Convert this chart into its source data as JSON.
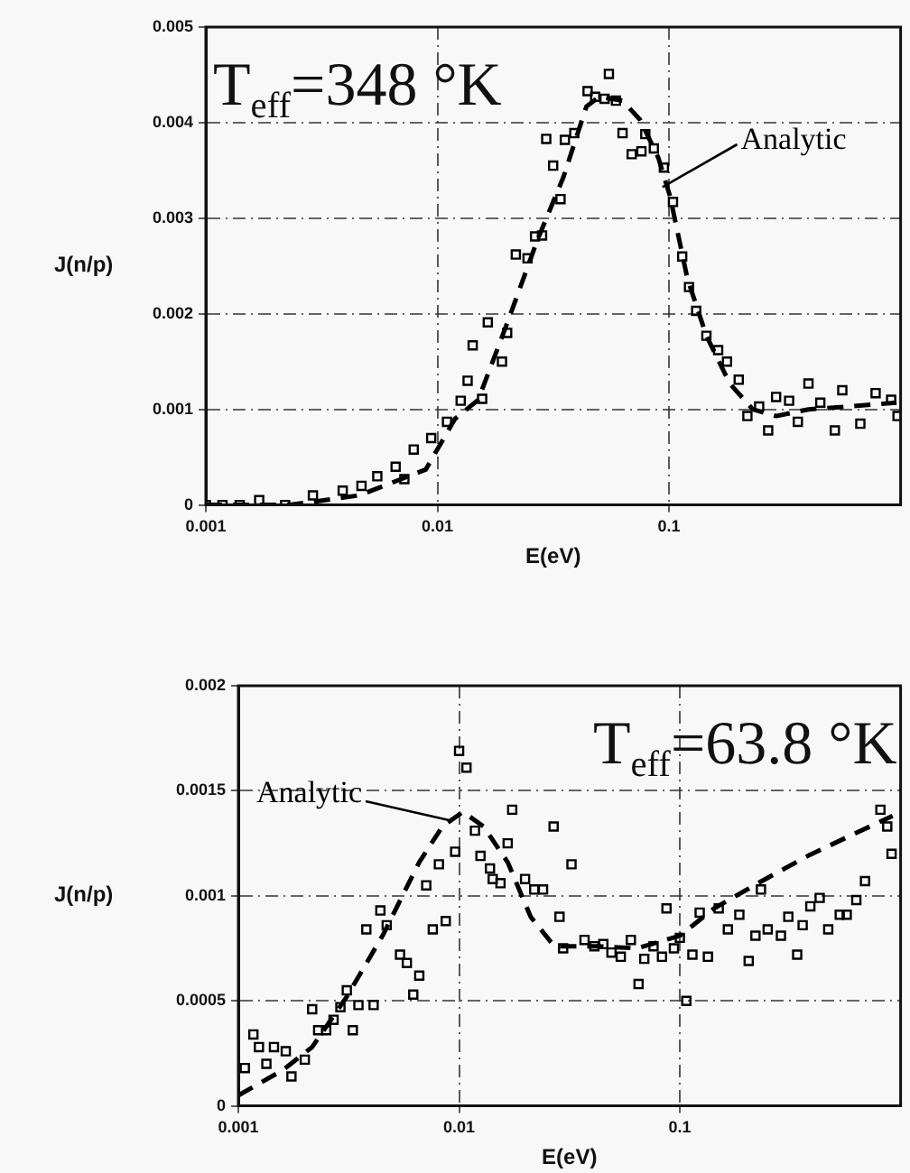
{
  "chart_data": [
    {
      "type": "scatter",
      "xlabel": "E(eV)",
      "ylabel": "J(n/p)",
      "annotations": [
        "T$_{eff}$=348 °K"
      ],
      "log": "x",
      "grid": true,
      "legend": "top right",
      "xlim": [
        0.001,
        1
      ],
      "xticks": [
        0.001,
        0.01,
        0.1
      ],
      "ylim": [
        0,
        0.005
      ],
      "yticks": [
        0,
        0.001,
        0.002,
        0.003,
        0.004,
        0.005
      ],
      "series": [
        {
          "color": "#000000",
          "marker": "square",
          "x": [
            0.001,
            0.00118,
            0.0014,
            0.0017,
            0.0022,
            0.0029,
            0.0039,
            0.0047,
            0.0055,
            0.0066,
            0.0072,
            0.0079,
            0.0094,
            0.011,
            0.0126,
            0.0135,
            0.0142,
            0.0156,
            0.0165,
            0.019,
            0.02,
            0.0218,
            0.0245,
            0.0264,
            0.0283,
            0.0295,
            0.0316,
            0.034,
            0.0355,
            0.039,
            0.0445,
            0.048,
            0.0527,
            0.055,
            0.059,
            0.063,
            0.069,
            0.076,
            0.079,
            0.086,
            0.095,
            0.104,
            0.114,
            0.122,
            0.131,
            0.145,
            0.163,
            0.178,
            0.2,
            0.218,
            0.245,
            0.268,
            0.29,
            0.33,
            0.36,
            0.4,
            0.45,
            0.52,
            0.56,
            0.67,
            0.78,
            0.91,
            0.97
          ],
          "values": [
            0,
            0,
            0,
            5e-05,
            0,
            0.0001,
            0.00015,
            0.0002,
            0.0003,
            0.0004,
            0.00027,
            0.00058,
            0.0007,
            0.00087,
            0.00109,
            0.0013,
            0.00167,
            0.00111,
            0.00191,
            0.0015,
            0.0018,
            0.00262,
            0.00258,
            0.00281,
            0.00282,
            0.00383,
            0.00355,
            0.0032,
            0.00382,
            0.00389,
            0.00433,
            0.00427,
            0.00425,
            0.00451,
            0.00423,
            0.00389,
            0.00367,
            0.0037,
            0.00388,
            0.00373,
            0.00353,
            0.00317,
            0.0026,
            0.00228,
            0.00203,
            0.00177,
            0.00162,
            0.0015,
            0.00131,
            0.00093,
            0.00103,
            0.00078,
            0.00113,
            0.00109,
            0.00087,
            0.00127,
            0.00107,
            0.00078,
            0.0012,
            0.00085,
            0.00117,
            0.0011,
            0.00093
          ]
        },
        {
          "type": "line",
          "name": "Analytic",
          "color": "#000000",
          "marker": "none",
          "line_style": "dashed",
          "x": [
            0.001,
            0.0023,
            0.0046,
            0.0089,
            0.0119,
            0.015,
            0.02,
            0.027,
            0.035,
            0.044,
            0.05,
            0.063,
            0.075,
            0.09,
            0.101,
            0.12,
            0.145,
            0.183,
            0.23,
            0.29,
            0.4,
            0.6,
            0.96
          ],
          "values": [
            0,
            0,
            0.0001,
            0.00037,
            0.0009,
            0.0011,
            0.0019,
            0.00277,
            0.00343,
            0.00417,
            0.00427,
            0.00423,
            0.00403,
            0.00363,
            0.00323,
            0.00237,
            0.00177,
            0.00127,
            0.001,
            0.00093,
            0.001,
            0.00103,
            0.00107
          ]
        }
      ]
    },
    {
      "type": "scatter",
      "xlabel": "E(eV)",
      "ylabel": "J(n/p)",
      "annotations": [
        "T$_{eff}$=63.8 °K"
      ],
      "log": "x",
      "grid": true,
      "legend": "top left",
      "xlim": [
        0.001,
        1
      ],
      "xticks": [
        0.001,
        0.01,
        0.1
      ],
      "ylim": [
        0,
        0.002
      ],
      "yticks": [
        0,
        0.0005,
        0.001,
        0.0015,
        0.002
      ],
      "series": [
        {
          "color": "#000000",
          "marker": "square",
          "x": [
            0.00107,
            0.00117,
            0.00124,
            0.00134,
            0.00145,
            0.00164,
            0.00174,
            0.002,
            0.00216,
            0.0023,
            0.0025,
            0.0027,
            0.0029,
            0.0031,
            0.0033,
            0.0035,
            0.0038,
            0.0041,
            0.0044,
            0.0047,
            0.0054,
            0.0058,
            0.0062,
            0.0066,
            0.0071,
            0.0076,
            0.0081,
            0.0087,
            0.0096,
            0.01,
            0.0108,
            0.0118,
            0.0125,
            0.0138,
            0.0142,
            0.0154,
            0.0166,
            0.0174,
            0.0199,
            0.0219,
            0.024,
            0.0268,
            0.0285,
            0.0296,
            0.0323,
            0.037,
            0.041,
            0.045,
            0.049,
            0.054,
            0.06,
            0.065,
            0.069,
            0.076,
            0.083,
            0.087,
            0.094,
            0.1,
            0.107,
            0.114,
            0.123,
            0.134,
            0.15,
            0.165,
            0.186,
            0.205,
            0.22,
            0.233,
            0.25,
            0.287,
            0.31,
            0.34,
            0.36,
            0.39,
            0.43,
            0.47,
            0.53,
            0.57,
            0.63,
            0.69,
            0.81,
            0.87,
            0.91
          ],
          "values": [
            0.00018,
            0.00034,
            0.00028,
            0.0002,
            0.00028,
            0.00026,
            0.00014,
            0.00022,
            0.00046,
            0.00036,
            0.00036,
            0.00041,
            0.00047,
            0.00055,
            0.00036,
            0.00048,
            0.00084,
            0.00048,
            0.00093,
            0.00086,
            0.00072,
            0.00068,
            0.00053,
            0.00062,
            0.00105,
            0.00084,
            0.00115,
            0.00088,
            0.00121,
            0.00169,
            0.00161,
            0.00131,
            0.00119,
            0.00113,
            0.00108,
            0.00106,
            0.00125,
            0.00141,
            0.00108,
            0.00103,
            0.00103,
            0.00133,
            0.0009,
            0.00075,
            0.00115,
            0.00079,
            0.00076,
            0.00077,
            0.00073,
            0.00071,
            0.00079,
            0.00058,
            0.0007,
            0.00076,
            0.00071,
            0.00094,
            0.00075,
            0.0008,
            0.0005,
            0.00072,
            0.00092,
            0.00071,
            0.00094,
            0.00084,
            0.00091,
            0.00069,
            0.00081,
            0.00103,
            0.00084,
            0.00081,
            0.0009,
            0.00072,
            0.00086,
            0.00095,
            0.00099,
            0.00084,
            0.00091,
            0.00091,
            0.00098,
            0.00107,
            0.00141,
            0.00133,
            0.0012
          ]
        },
        {
          "type": "line",
          "name": "Analytic",
          "color": "#000000",
          "marker": "none",
          "line_style": "dashed",
          "x": [
            0.001,
            0.00159,
            0.00216,
            0.0031,
            0.0045,
            0.0066,
            0.0084,
            0.0104,
            0.0129,
            0.0166,
            0.0211,
            0.027,
            0.042,
            0.064,
            0.1,
            0.143,
            0.235,
            0.38,
            0.63,
            0.92
          ],
          "values": [
            5e-05,
            0.00017,
            0.00028,
            0.00052,
            0.00081,
            0.00116,
            0.00133,
            0.0014,
            0.00133,
            0.00116,
            0.0009,
            0.00076,
            0.00076,
            0.00075,
            0.00081,
            0.00094,
            0.00107,
            0.00119,
            0.0013,
            0.00138
          ]
        }
      ]
    }
  ]
}
